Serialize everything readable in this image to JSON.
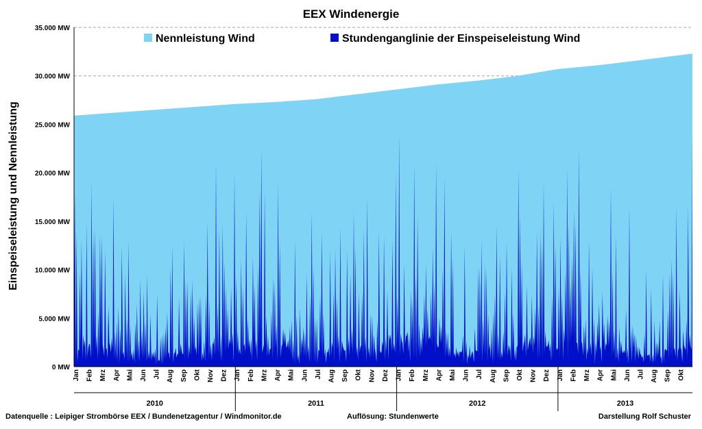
{
  "chart_data": {
    "type": "area",
    "title": "EEX  Windenergie",
    "ylabel": "Einspeiseleistung  und Nennleistung",
    "ylim": [
      0,
      35000
    ],
    "y_unit": "MW",
    "grid": true,
    "legend_position": "top",
    "y_ticks": [
      "0 MW",
      "5.000 MW",
      "10.000 MW",
      "15.000 MW",
      "20.000 MW",
      "25.000 MW",
      "30.000 MW",
      "35.000 MW"
    ],
    "y_tick_values": [
      0,
      5000,
      10000,
      15000,
      20000,
      25000,
      30000,
      35000
    ],
    "x_range": [
      "2010-01",
      "2013-11"
    ],
    "years": [
      {
        "label": "2010",
        "months": [
          "Jan",
          "Feb",
          "Mrz",
          "Apr",
          "Mai",
          "Jun",
          "Jul",
          "Aug",
          "Sep",
          "Okt",
          "Nov",
          "Dez"
        ]
      },
      {
        "label": "2011",
        "months": [
          "Jan",
          "Feb",
          "Mrz",
          "Apr",
          "Mai",
          "Jun",
          "Jul",
          "Aug",
          "Sep",
          "Okt",
          "Nov",
          "Dez"
        ]
      },
      {
        "label": "2012",
        "months": [
          "Jan",
          "Feb",
          "Mrz",
          "Apr",
          "Mai",
          "Jun",
          "Jul",
          "Aug",
          "Sep",
          "Okt",
          "Nov",
          "Dez"
        ]
      },
      {
        "label": "2013",
        "months": [
          "Jan",
          "Feb",
          "Mrz",
          "Apr",
          "Mai",
          "Jun",
          "Jul",
          "Aug",
          "Sep",
          "Okt"
        ]
      }
    ],
    "series": [
      {
        "name": "Nennleistung Wind",
        "color": "#7fd3f5",
        "x": [
          "2010-01",
          "2010-04",
          "2010-07",
          "2010-10",
          "2011-01",
          "2011-04",
          "2011-07",
          "2011-10",
          "2012-01",
          "2012-04",
          "2012-07",
          "2012-10",
          "2013-01",
          "2013-04",
          "2013-07",
          "2013-11"
        ],
        "values": [
          25900,
          26200,
          26500,
          26800,
          27100,
          27300,
          27600,
          28100,
          28600,
          29100,
          29500,
          30000,
          30700,
          31100,
          31600,
          32300
        ]
      },
      {
        "name": "Stundenganglinie der Einspeiseleistung Wind",
        "color": "#0010c8",
        "x": [
          "2010-01",
          "2010-02",
          "2010-03",
          "2010-04",
          "2010-05",
          "2010-06",
          "2010-07",
          "2010-08",
          "2010-09",
          "2010-10",
          "2010-11",
          "2010-12",
          "2011-01",
          "2011-02",
          "2011-03",
          "2011-04",
          "2011-05",
          "2011-06",
          "2011-07",
          "2011-08",
          "2011-09",
          "2011-10",
          "2011-11",
          "2011-12",
          "2012-01",
          "2012-02",
          "2012-03",
          "2012-04",
          "2012-05",
          "2012-06",
          "2012-07",
          "2012-08",
          "2012-09",
          "2012-10",
          "2012-11",
          "2012-12",
          "2013-01",
          "2013-02",
          "2013-03",
          "2013-04",
          "2013-05",
          "2013-06",
          "2013-07",
          "2013-08",
          "2013-09",
          "2013-10",
          "2013-11"
        ],
        "monthly_peak": [
          18000,
          19000,
          17500,
          12500,
          13000,
          9500,
          7500,
          12500,
          13000,
          15000,
          21000,
          20000,
          16000,
          22500,
          18000,
          19000,
          13000,
          16000,
          14000,
          14500,
          16000,
          17500,
          14000,
          20000,
          24000,
          21000,
          21000,
          19500,
          14000,
          12500,
          13000,
          14500,
          13000,
          20500,
          19000,
          17000,
          20500,
          22500,
          13000,
          18500,
          13500,
          16500,
          10000,
          9500,
          16500,
          16500,
          24000
        ]
      }
    ]
  },
  "footer": {
    "source": "Datenquelle : Leipiger Strombörse EEX  / Bundenetzagentur / Windmonitor.de",
    "resolution": "Auflösung: Stundenwerte",
    "author": "Darstellung Rolf Schuster"
  },
  "colors": {
    "nennleistung": "#7fd3f5",
    "einspeisung": "#0010c8",
    "grid": "#a0a0a0"
  }
}
